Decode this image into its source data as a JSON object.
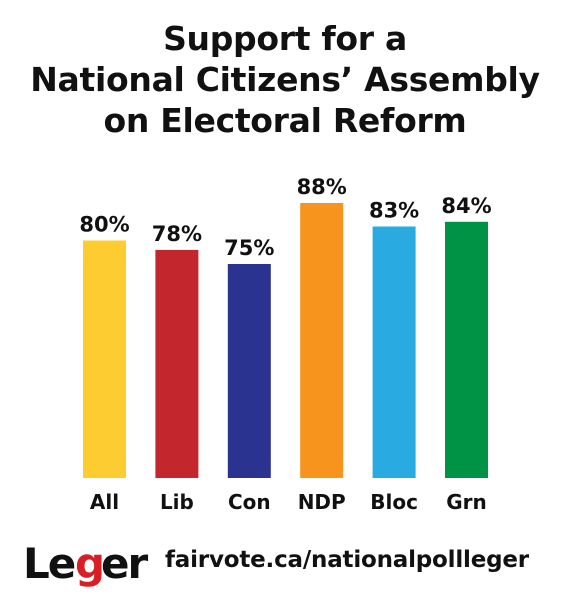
{
  "title_lines": [
    "Support for a",
    "National Citizens’ Assembly",
    "on Electoral Reform"
  ],
  "chart_data": {
    "type": "bar",
    "title": "Support for a National Citizens’ Assembly on Electoral Reform",
    "categories": [
      "All",
      "Lib",
      "Con",
      "NDP",
      "Bloc",
      "Grn"
    ],
    "values": [
      80,
      78,
      75,
      88,
      83,
      84
    ],
    "value_labels": [
      "80%",
      "78%",
      "75%",
      "88%",
      "83%",
      "84%"
    ],
    "colors": [
      "#FDCC31",
      "#C4262E",
      "#2B3390",
      "#F7941E",
      "#29ABE2",
      "#009345"
    ],
    "ylim": [
      0,
      100
    ],
    "grid": false,
    "legend": "none"
  },
  "footer": {
    "logo_text": "Leger",
    "logo_accent_color": "#D71F26",
    "url": "fairvote.ca/nationalpollleger"
  }
}
